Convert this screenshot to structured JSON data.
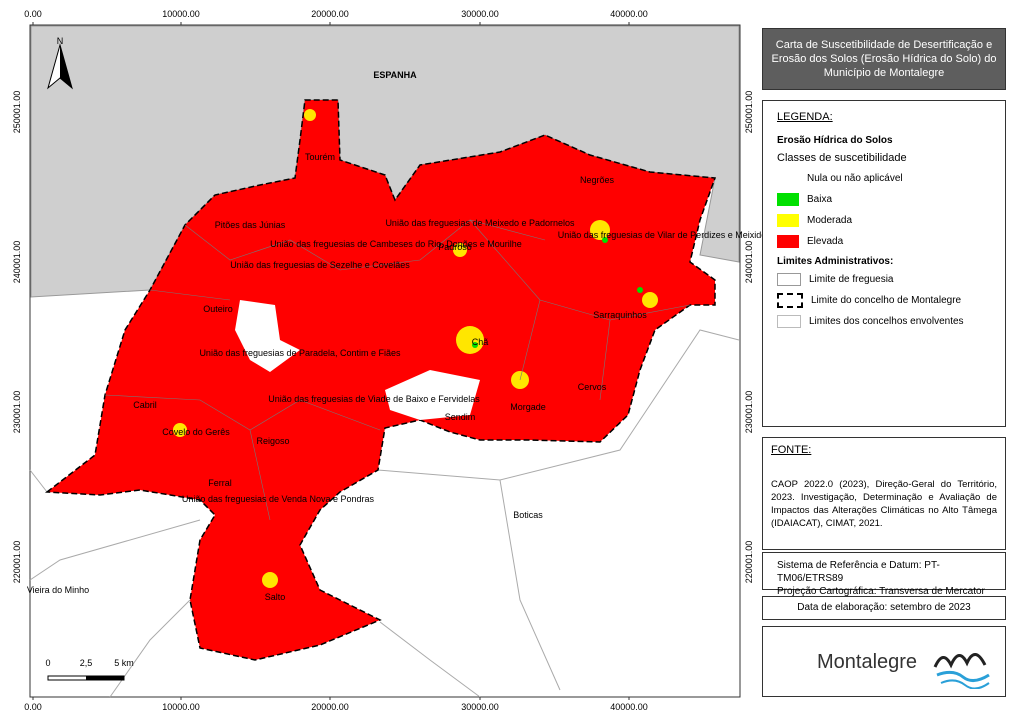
{
  "map": {
    "coords_x": [
      "0.00",
      "10000.00",
      "20000.00",
      "30000.00",
      "40000.00"
    ],
    "coords_y": [
      "250001.00",
      "240001.00",
      "230001.00",
      "220001.00"
    ],
    "north": "N",
    "labels": [
      "ESPANHA",
      "Boticas",
      "Vieira do Minho",
      "Tourém",
      "Pitões das Júnias",
      "União das freguesias de Sezelhe e Covelães",
      "Outeiro",
      "Cabril",
      "Covelo do Gerês",
      "Ferral",
      "Reigoso",
      "Salto",
      "Morgade",
      "Sarraquinhos",
      "Cervos",
      "Chã",
      "Negrões",
      "Padroso",
      "União das freguesias de Viade de Baixo e Fervidelas",
      "União das freguesias de Venda Nova e Pondras",
      "União das freguesias de Paradela, Contim e Fiães",
      "União das freguesias de Cambeses do Rio, Donões e Mourilhe",
      "União das freguesias de Meixedo e Padornelos",
      "União das freguesias de Vilar de Perdizes e Meixide",
      "Sendim"
    ],
    "scale": [
      "0",
      "2,5",
      "5 km"
    ]
  },
  "panel": {
    "title": [
      "Carta de Suscetibilidade de Desertificação e",
      "Erosão dos Solos (Erosão Hídrica do Solo) do",
      "Município de Montalegre"
    ],
    "legend": {
      "heading": "LEGENDA:",
      "theme": "Erosão Hídrica do Solos",
      "subtitle": "Classes de suscetibilidade",
      "classes": [
        {
          "name": "Nula ou não aplicável",
          "color": "#ffffff"
        },
        {
          "name": "Baixa",
          "color": "#00e000"
        },
        {
          "name": "Moderada",
          "color": "#ffff00"
        },
        {
          "name": "Elevada",
          "color": "#ff0000"
        }
      ],
      "admin_heading": "Limites Administrativos:",
      "admin": [
        "Limite de freguesia",
        "Limite do concelho de Montalegre",
        "Limites dos concelhos envolventes"
      ]
    },
    "source": {
      "heading": "FONTE:",
      "text": "CAOP 2022.0 (2023), Direção-Geral do Território, 2023. Investigação, Determinação e Avaliação de Impactos das Alterações Climáticas no Alto Tâmega (IDAIACAT), CIMAT, 2021."
    },
    "system": [
      "Sistema de Referência e Datum: PT-TM06/ETRS89",
      "Projeção Cartográfica: Transversa de Mercator"
    ],
    "date": "Data de elaboração: setembro de 2023",
    "logo": "Montalegre"
  }
}
